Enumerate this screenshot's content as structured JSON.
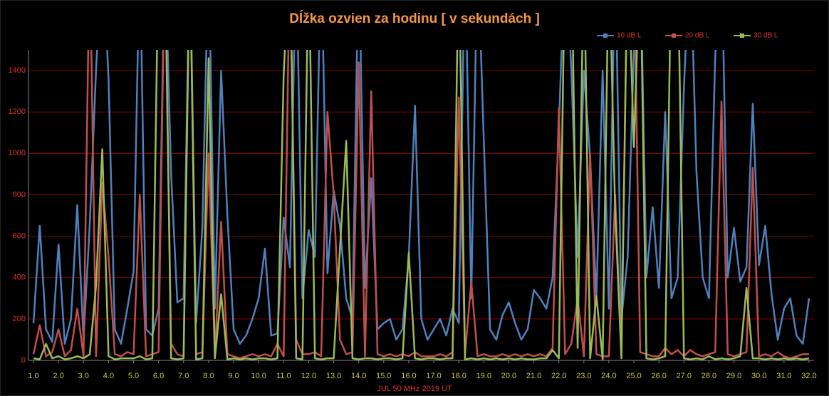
{
  "chart_data": {
    "type": "line",
    "title": "Dĺžka ozvien za hodinu [ v sekundách ]",
    "x_label": "JUL 50 MHz  2019  UT",
    "legend": "top-right",
    "grid": true,
    "x": [
      1,
      1.25,
      1.5,
      1.75,
      2,
      2.25,
      2.5,
      2.75,
      3,
      3.25,
      3.5,
      3.75,
      4,
      4.25,
      4.5,
      4.75,
      5,
      5.25,
      5.5,
      5.75,
      6,
      6.25,
      6.5,
      6.75,
      7,
      7.25,
      7.5,
      7.75,
      8,
      8.25,
      8.5,
      8.75,
      9,
      9.25,
      9.5,
      9.75,
      10,
      10.25,
      10.5,
      10.75,
      11,
      11.25,
      11.5,
      11.75,
      12,
      12.25,
      12.5,
      12.75,
      13,
      13.25,
      13.5,
      13.75,
      14,
      14.25,
      14.5,
      14.75,
      15,
      15.25,
      15.5,
      15.75,
      16,
      16.25,
      16.5,
      16.75,
      17,
      17.25,
      17.5,
      17.75,
      18,
      18.25,
      18.5,
      18.75,
      19,
      19.25,
      19.5,
      19.75,
      20,
      20.25,
      20.5,
      20.75,
      21,
      21.25,
      21.5,
      21.75,
      22,
      22.25,
      22.5,
      22.75,
      23,
      23.25,
      23.5,
      23.75,
      24,
      24.25,
      24.5,
      24.75,
      25,
      25.25,
      25.5,
      25.75,
      26,
      26.25,
      26.5,
      26.75,
      27,
      27.25,
      27.5,
      27.75,
      28,
      28.25,
      28.5,
      28.75,
      29,
      29.25,
      29.5,
      29.75,
      30,
      30.25,
      30.5,
      30.75,
      31,
      31.25,
      31.5,
      31.75,
      32
    ],
    "series": [
      {
        "name": "10 dB L",
        "color": "#4f81bd",
        "values": [
          180,
          650,
          150,
          90,
          560,
          80,
          200,
          750,
          100,
          660,
          1400,
          2000,
          1360,
          150,
          80,
          250,
          430,
          2000,
          150,
          120,
          250,
          2000,
          900,
          280,
          300,
          2000,
          180,
          640,
          2000,
          250,
          1400,
          700,
          150,
          80,
          120,
          200,
          300,
          540,
          120,
          130,
          690,
          450,
          2000,
          300,
          630,
          500,
          2000,
          420,
          820,
          650,
          300,
          200,
          2000,
          350,
          880,
          150,
          180,
          200,
          100,
          150,
          500,
          1230,
          200,
          100,
          150,
          200,
          120,
          250,
          180,
          2000,
          300,
          2000,
          1060,
          150,
          100,
          220,
          280,
          180,
          100,
          150,
          340,
          300,
          250,
          400,
          1120,
          2000,
          1400,
          500,
          1400,
          980,
          300,
          1400,
          250,
          2000,
          200,
          500,
          1500,
          2000,
          400,
          740,
          350,
          1200,
          300,
          400,
          1320,
          2000,
          910,
          400,
          300,
          1470,
          2000,
          400,
          640,
          380,
          450,
          1240,
          460,
          650,
          320,
          100,
          250,
          300,
          120,
          80,
          300
        ]
      },
      {
        "name": "20 dB L",
        "color": "#c0504d",
        "values": [
          30,
          170,
          20,
          40,
          150,
          20,
          50,
          250,
          20,
          2000,
          20,
          860,
          500,
          30,
          20,
          40,
          30,
          800,
          20,
          30,
          40,
          2000,
          80,
          30,
          20,
          2000,
          30,
          40,
          1000,
          20,
          670,
          30,
          20,
          10,
          20,
          30,
          20,
          30,
          20,
          80,
          20,
          2000,
          100,
          30,
          30,
          40,
          20,
          1200,
          800,
          100,
          30,
          40,
          1440,
          20,
          1300,
          30,
          20,
          30,
          20,
          30,
          20,
          40,
          20,
          20,
          20,
          30,
          20,
          40,
          1270,
          30,
          380,
          20,
          30,
          20,
          20,
          30,
          20,
          30,
          20,
          30,
          20,
          30,
          20,
          60,
          1220,
          30,
          80,
          300,
          20,
          1000,
          30,
          20,
          20,
          800,
          30,
          2000,
          2000,
          40,
          30,
          20,
          20,
          60,
          30,
          50,
          20,
          50,
          30,
          20,
          30,
          40,
          1250,
          30,
          20,
          30,
          40,
          930,
          20,
          30,
          20,
          40,
          20,
          10,
          20,
          30,
          30
        ]
      },
      {
        "name": "30 dB L",
        "color": "#9bbb59",
        "values": [
          10,
          5,
          80,
          10,
          20,
          5,
          10,
          20,
          10,
          30,
          360,
          1020,
          20,
          5,
          10,
          10,
          10,
          20,
          5,
          10,
          2000,
          2000,
          10,
          5,
          10,
          2000,
          5,
          10,
          1460,
          10,
          320,
          5,
          10,
          5,
          10,
          5,
          10,
          10,
          5,
          10,
          1380,
          2000,
          10,
          5,
          2000,
          10,
          5,
          10,
          10,
          540,
          1060,
          10,
          5,
          10,
          10,
          5,
          10,
          10,
          5,
          10,
          520,
          10,
          5,
          10,
          10,
          5,
          10,
          10,
          2000,
          5,
          10,
          5,
          10,
          5,
          10,
          5,
          10,
          5,
          10,
          5,
          5,
          10,
          10,
          50,
          10,
          2000,
          2000,
          60,
          2000,
          10,
          310,
          5,
          2000,
          720,
          10,
          2000,
          1030,
          2000,
          10,
          5,
          10,
          20,
          2000,
          2000,
          10,
          5,
          10,
          5,
          20,
          5,
          10,
          5,
          10,
          20,
          350,
          10,
          10,
          5,
          10,
          5,
          10,
          5,
          10,
          5,
          10
        ]
      }
    ],
    "xlim": [
      0.8,
      32.2
    ],
    "xticks": [
      {
        "value": 1,
        "label": "1.0"
      },
      {
        "value": 2,
        "label": "2.0"
      },
      {
        "value": 3,
        "label": "3.0"
      },
      {
        "value": 4,
        "label": "4.0"
      },
      {
        "value": 5,
        "label": "5.0"
      },
      {
        "value": 6,
        "label": "6.0"
      },
      {
        "value": 7,
        "label": "7.0"
      },
      {
        "value": 8,
        "label": "8.0"
      },
      {
        "value": 9,
        "label": "9.0"
      },
      {
        "value": 10,
        "label": "10.0"
      },
      {
        "value": 11,
        "label": "11.0"
      },
      {
        "value": 12,
        "label": "12.0"
      },
      {
        "value": 13,
        "label": "13.0"
      },
      {
        "value": 14,
        "label": "14.0"
      },
      {
        "value": 15,
        "label": "15.0"
      },
      {
        "value": 16,
        "label": "16.0"
      },
      {
        "value": 17,
        "label": "17.0"
      },
      {
        "value": 18,
        "label": "18.0"
      },
      {
        "value": 19,
        "label": "19.0"
      },
      {
        "value": 20,
        "label": "20.0"
      },
      {
        "value": 21,
        "label": "21.0"
      },
      {
        "value": 22,
        "label": "22.0"
      },
      {
        "value": 23,
        "label": "23.0"
      },
      {
        "value": 24,
        "label": "24.0"
      },
      {
        "value": 25,
        "label": "25.0"
      },
      {
        "value": 26,
        "label": "26.0"
      },
      {
        "value": 27,
        "label": "27.0"
      },
      {
        "value": 28,
        "label": "28.0"
      },
      {
        "value": 29,
        "label": "29.0"
      },
      {
        "value": 30,
        "label": "30.0"
      },
      {
        "value": 31,
        "label": "31.0"
      },
      {
        "value": 32,
        "label": "32.0"
      }
    ],
    "ylim": [
      0,
      1500
    ],
    "yticks": [
      0,
      200,
      400,
      600,
      800,
      1000,
      1200,
      1400
    ]
  }
}
